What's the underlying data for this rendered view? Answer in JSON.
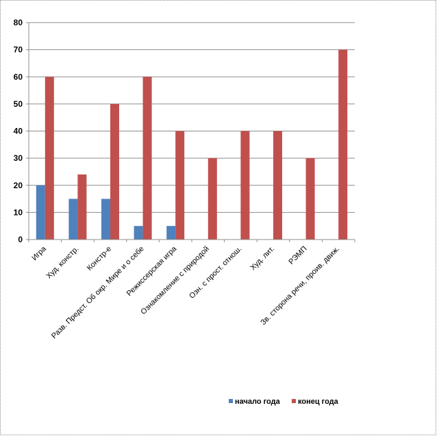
{
  "chart_data": {
    "type": "bar",
    "categories": [
      "Игра",
      "Худ. констр.",
      "Констр-е",
      "Разв. Предст. Об окр. Мире и о себе",
      "Режиссерская игра",
      "Ознакомление с природой",
      "Озн. с прост. отнош.",
      "Худ. лит.",
      "РЭМП",
      "Зв. сторона речи, проив. движ."
    ],
    "series": [
      {
        "name": "начало года",
        "values": [
          20,
          15,
          15,
          5,
          5,
          0,
          0,
          0,
          0,
          0
        ]
      },
      {
        "name": "конец года",
        "values": [
          60,
          24,
          50,
          60,
          40,
          30,
          40,
          40,
          30,
          70
        ]
      }
    ],
    "ylim": [
      0,
      80
    ],
    "yticks": [
      0,
      10,
      20,
      30,
      40,
      50,
      60,
      70,
      80
    ],
    "grid": true,
    "legend_position": "bottom-right",
    "colors": [
      "#4f81bd",
      "#c0504d"
    ]
  }
}
